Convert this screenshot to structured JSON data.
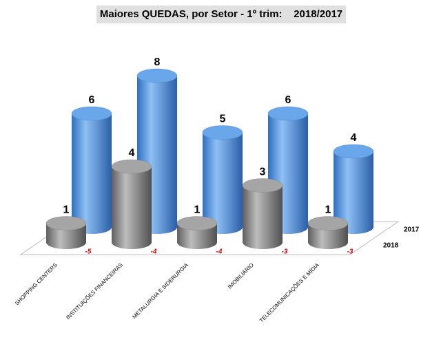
{
  "chart_data": {
    "type": "bar3d",
    "title": "Maiores QUEDAS, por Setor - 1º trim:    2018/2017",
    "categories": [
      "SHOPPING CENTERS",
      "INSTITUIÇÕES FINANCEIRAS",
      "METALURGIA E SIDERURGIA",
      "IMOBILIÁRIO",
      "TELECOMUNICAÇÕES E MÍDIA"
    ],
    "series": [
      {
        "name": "2017",
        "color": "#4f8fdc",
        "values": [
          6,
          8,
          5,
          6,
          4
        ]
      },
      {
        "name": "2018",
        "color": "#8c8c8c",
        "values": [
          1,
          4,
          1,
          3,
          1
        ]
      }
    ],
    "differences": [
      -5,
      -4,
      -4,
      -3,
      -3
    ],
    "differences_color": "#e00000"
  }
}
